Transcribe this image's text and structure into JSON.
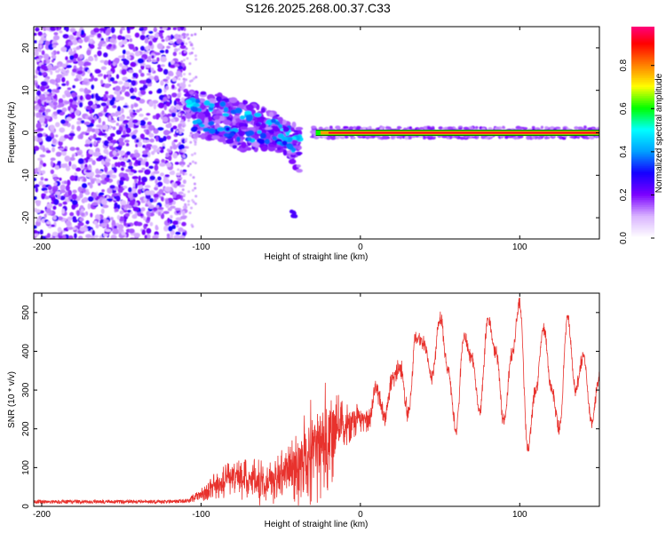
{
  "title": "S126.2025.268.00.37.C33",
  "chart_data": [
    {
      "type": "heatmap",
      "xlabel": "Height of straight line (km)",
      "ylabel": "Frequency (Hz)",
      "xlim": [
        -205,
        150
      ],
      "ylim": [
        -25,
        25
      ],
      "xticks": [
        -200,
        -100,
        0,
        100
      ],
      "yticks": [
        -20,
        -10,
        0,
        10,
        20
      ],
      "colorbar": {
        "label": "Normalized spectral amplitude",
        "range": [
          0,
          1
        ],
        "ticks": [
          "0.0",
          "0.2",
          "0.4",
          "0.6",
          "0.8"
        ],
        "tick_values": [
          0.0,
          0.2,
          0.4,
          0.6,
          0.8
        ],
        "colors": [
          "#ffffff",
          "#d9b3ff",
          "#7a00ff",
          "#1500ff",
          "#00a0ff",
          "#00ffff",
          "#00ff00",
          "#ffff00",
          "#ff8000",
          "#ff0000",
          "#ff00a0"
        ]
      },
      "features": [
        {
          "description": "broadband noise",
          "x_range": [
            -205,
            -110
          ],
          "freq_range": [
            -25,
            25
          ],
          "amplitude": 0.15
        },
        {
          "description": "descending branch",
          "points": [
            [
              -110,
              7
            ],
            [
              -90,
              6
            ],
            [
              -70,
              4
            ],
            [
              -55,
              2
            ],
            [
              -45,
              0
            ],
            [
              -38,
              -2
            ]
          ],
          "amplitude": 0.3
        },
        {
          "description": "lower branch",
          "points": [
            [
              -105,
              2
            ],
            [
              -90,
              1.5
            ],
            [
              -75,
              -1
            ],
            [
              -60,
              -1
            ],
            [
              -45,
              -2
            ],
            [
              -38,
              -8
            ]
          ],
          "amplitude": 0.25
        },
        {
          "description": "isolated blob",
          "points": [
            [
              -42,
              -19
            ]
          ],
          "amplitude": 0.15
        },
        {
          "description": "converged carrier line",
          "points": [
            [
              -30,
              0
            ],
            [
              0,
              0
            ],
            [
              150,
              0
            ]
          ],
          "amplitude": 0.95
        }
      ]
    },
    {
      "type": "line",
      "xlabel": "Height of straight line (km)",
      "ylabel": "SNR (10 * v/v)",
      "xlim": [
        -205,
        150
      ],
      "ylim": [
        0,
        550
      ],
      "xticks": [
        -200,
        -100,
        0,
        100
      ],
      "yticks": [
        0,
        100,
        200,
        300,
        400,
        500
      ],
      "series": [
        {
          "name": "SNR",
          "color": "#e8322d",
          "x": [
            -205,
            -190,
            -170,
            -150,
            -130,
            -110,
            -100,
            -90,
            -80,
            -70,
            -60,
            -50,
            -40,
            -30,
            -20,
            -10,
            0,
            5,
            10,
            15,
            20,
            25,
            30,
            35,
            40,
            45,
            50,
            55,
            60,
            65,
            70,
            75,
            80,
            85,
            90,
            95,
            100,
            105,
            110,
            115,
            120,
            125,
            130,
            135,
            140,
            145,
            150
          ],
          "values": [
            12,
            12,
            12,
            12,
            12,
            13,
            30,
            50,
            75,
            65,
            60,
            75,
            100,
            140,
            180,
            210,
            230,
            220,
            300,
            230,
            330,
            360,
            240,
            440,
            420,
            330,
            490,
            350,
            200,
            440,
            380,
            250,
            480,
            400,
            220,
            390,
            520,
            150,
            300,
            460,
            300,
            200,
            490,
            300,
            390,
            220,
            330
          ],
          "noise_amplitude": [
            6,
            6,
            6,
            6,
            6,
            6,
            20,
            40,
            50,
            60,
            60,
            70,
            100,
            140,
            150,
            60,
            40,
            30,
            30,
            30,
            30,
            30,
            30,
            20,
            20,
            20,
            20,
            20,
            20,
            20,
            20,
            20,
            20,
            20,
            20,
            20,
            20,
            20,
            20,
            20,
            20,
            20,
            20,
            20,
            20,
            20,
            20
          ]
        }
      ]
    }
  ]
}
